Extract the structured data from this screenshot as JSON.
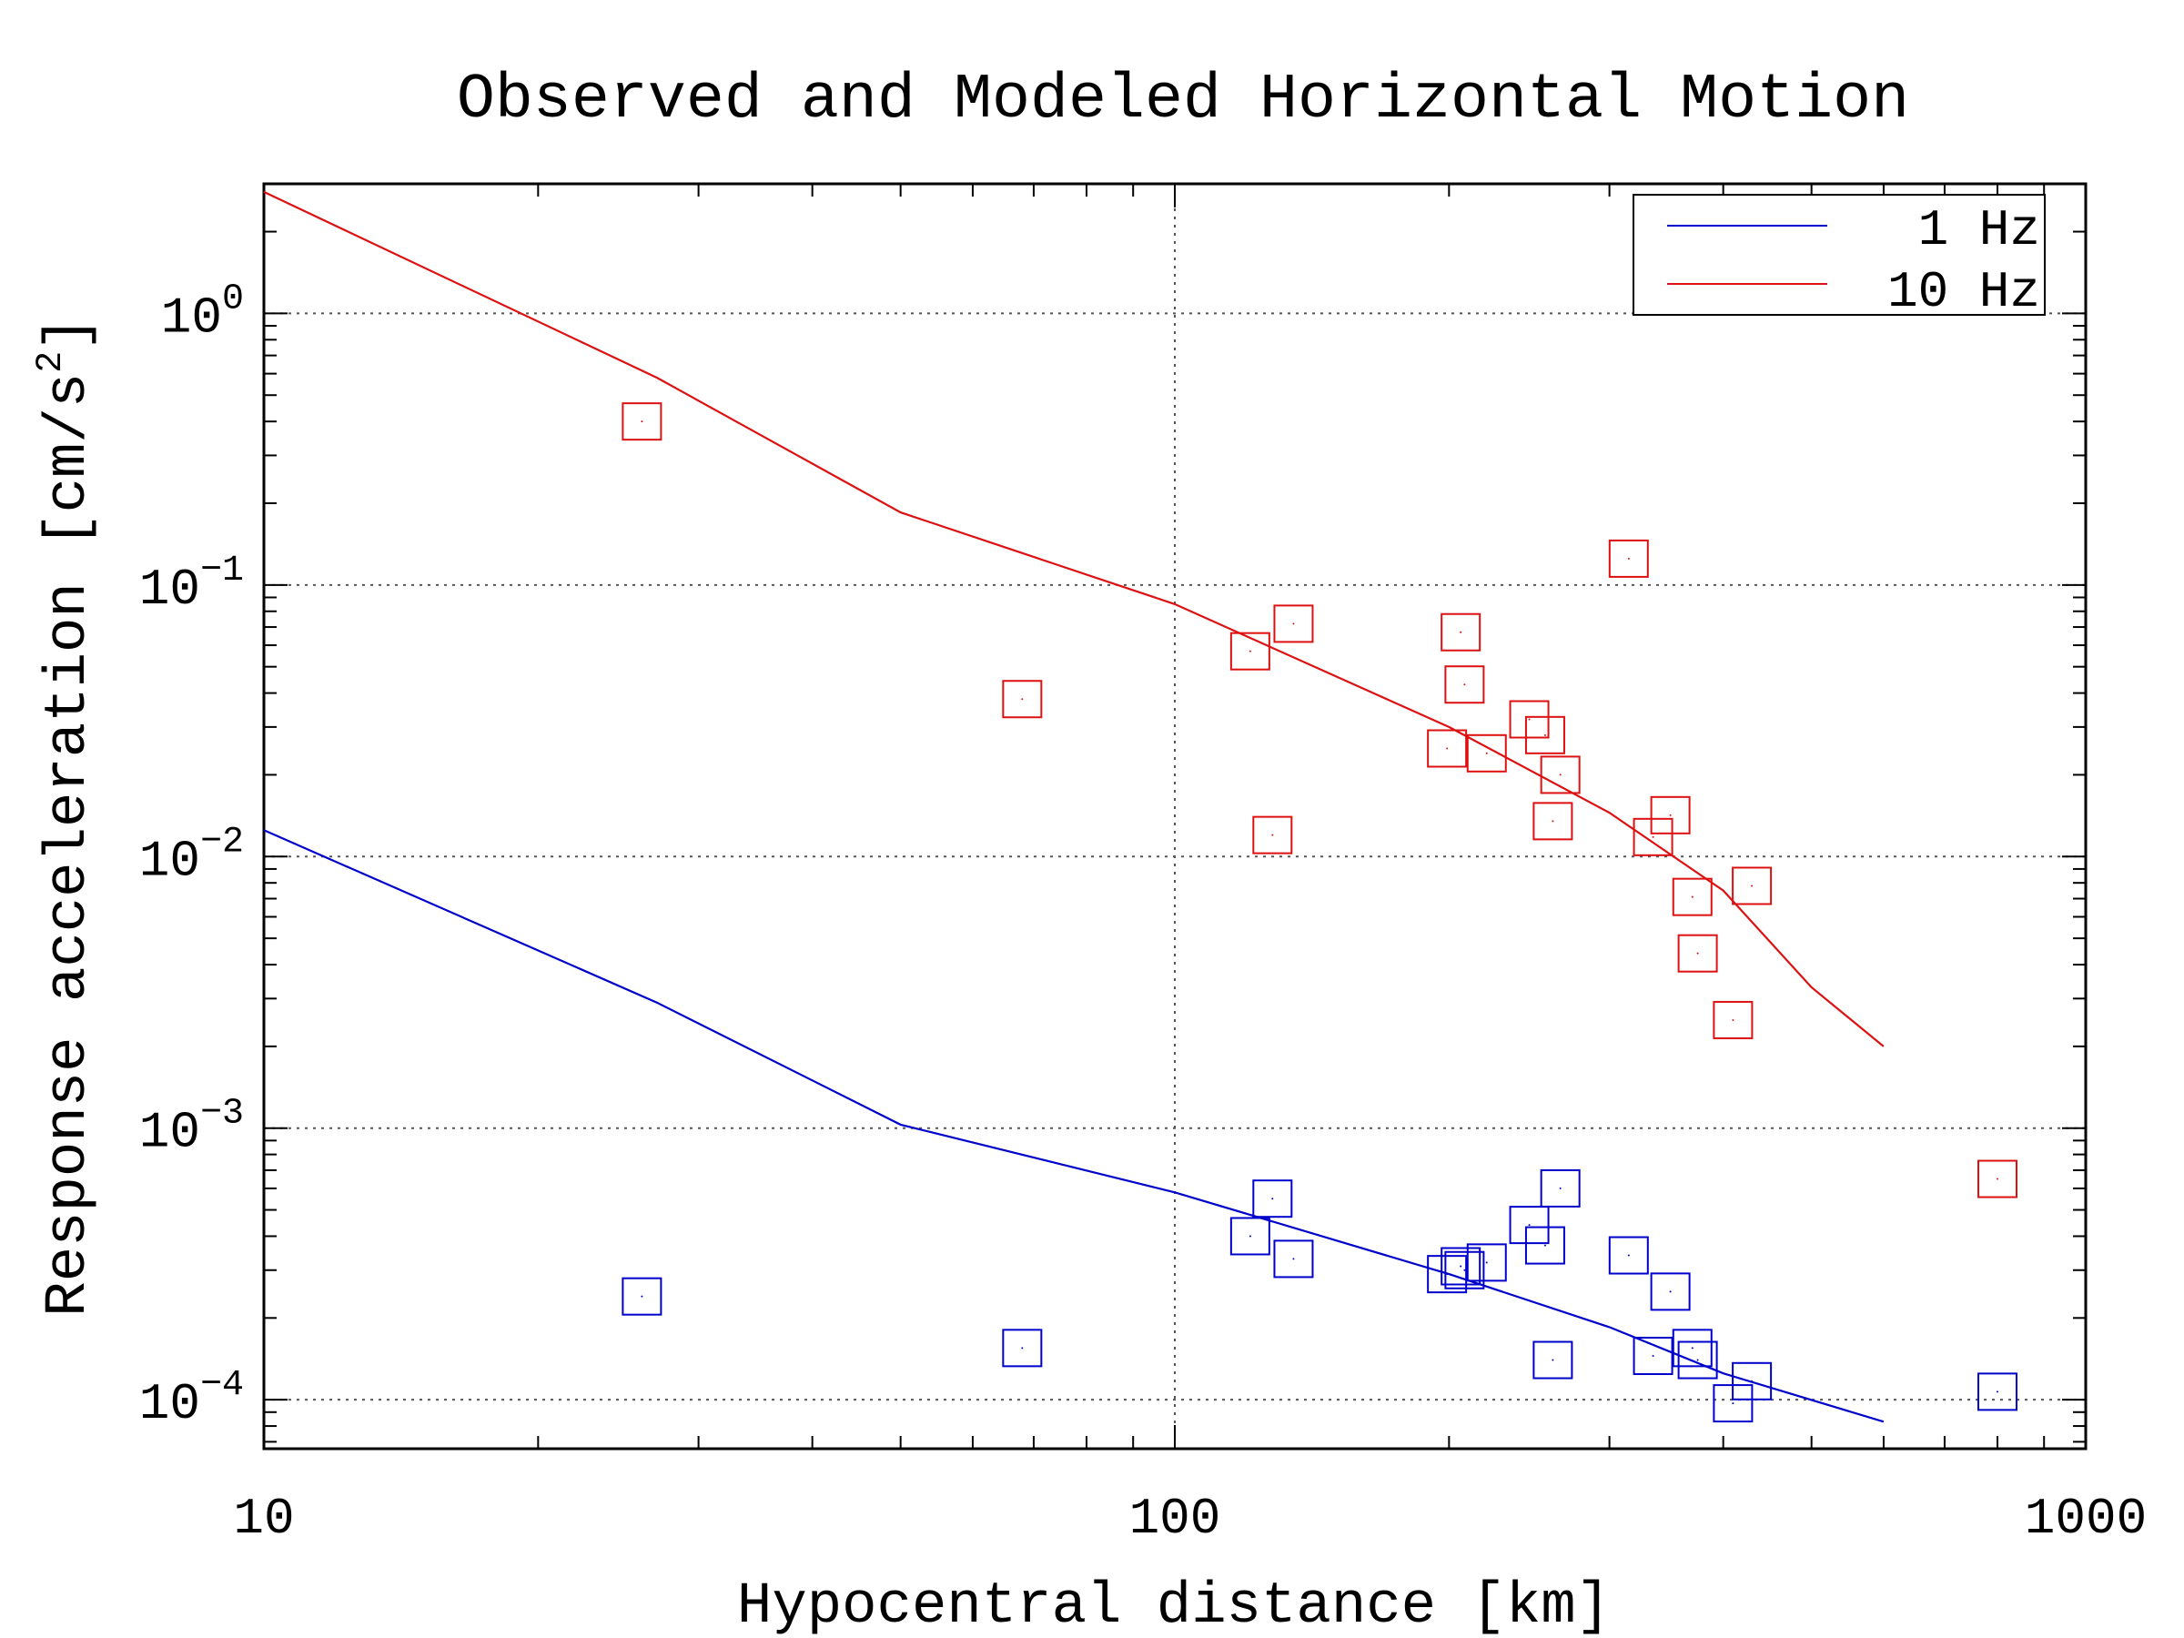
{
  "chart_data": {
    "type": "scatter",
    "title": "Observed and Modeled Horizontal Motion",
    "xlabel": "Hypocentral distance [km]",
    "ylabel_base": "Response acceleration [cm/s",
    "ylabel_sup": "2",
    "ylabel_close": "]",
    "x_scale": "log",
    "y_scale": "log",
    "xlim": [
      10,
      1000
    ],
    "ylim": [
      6.6e-05,
      3.0
    ],
    "grid": true,
    "legend_position": "top-right",
    "x_ticks": [
      {
        "value": 10,
        "label": "10"
      },
      {
        "value": 100,
        "label": "100"
      },
      {
        "value": 1000,
        "label": "1000"
      }
    ],
    "y_ticks": [
      {
        "value": 0.0001,
        "base": "10",
        "exp": "−4"
      },
      {
        "value": 0.001,
        "base": "10",
        "exp": "−3"
      },
      {
        "value": 0.01,
        "base": "10",
        "exp": "−2"
      },
      {
        "value": 0.1,
        "base": "10",
        "exp": "−1"
      },
      {
        "value": 1,
        "base": "10",
        "exp": "0"
      }
    ],
    "series": [
      {
        "name": "1 Hz",
        "color": "#0000cc",
        "model_line": [
          [
            10,
            0.0125
          ],
          [
            27,
            0.0029
          ],
          [
            50,
            0.00103
          ],
          [
            100,
            0.00058
          ],
          [
            200,
            0.00029
          ],
          [
            300,
            0.000185
          ],
          [
            400,
            0.000125
          ],
          [
            600,
            8.3e-05
          ]
        ],
        "observations": [
          [
            26,
            0.00024
          ],
          [
            68,
            0.000155
          ],
          [
            121,
            0.0004
          ],
          [
            128,
            0.00055
          ],
          [
            135,
            0.00033
          ],
          [
            199,
            0.00029
          ],
          [
            206,
            0.00031
          ],
          [
            208,
            0.0003
          ],
          [
            220,
            0.00032
          ],
          [
            245,
            0.00044
          ],
          [
            255,
            0.00037
          ],
          [
            260,
            0.00014
          ],
          [
            265,
            0.0006
          ],
          [
            315,
            0.00034
          ],
          [
            335,
            0.000145
          ],
          [
            350,
            0.00025
          ],
          [
            370,
            0.000155
          ],
          [
            375,
            0.00014
          ],
          [
            410,
            9.7e-05
          ],
          [
            430,
            0.000117
          ],
          [
            800,
            0.000107
          ]
        ]
      },
      {
        "name": "10 Hz",
        "color": "#dd1111",
        "model_line": [
          [
            10,
            2.8
          ],
          [
            27,
            0.58
          ],
          [
            50,
            0.185
          ],
          [
            100,
            0.085
          ],
          [
            200,
            0.03
          ],
          [
            300,
            0.0145
          ],
          [
            400,
            0.0075
          ],
          [
            500,
            0.0033
          ],
          [
            600,
            0.002
          ]
        ],
        "observations": [
          [
            26,
            0.4
          ],
          [
            68,
            0.038
          ],
          [
            121,
            0.057
          ],
          [
            128,
            0.012
          ],
          [
            135,
            0.072
          ],
          [
            199,
            0.025
          ],
          [
            206,
            0.067
          ],
          [
            208,
            0.043
          ],
          [
            220,
            0.024
          ],
          [
            245,
            0.032
          ],
          [
            255,
            0.028
          ],
          [
            260,
            0.0135
          ],
          [
            265,
            0.02
          ],
          [
            315,
            0.125
          ],
          [
            335,
            0.0118
          ],
          [
            350,
            0.0142
          ],
          [
            370,
            0.0071
          ],
          [
            375,
            0.0044
          ],
          [
            410,
            0.0025
          ],
          [
            430,
            0.0078
          ],
          [
            800,
            0.00065
          ]
        ]
      }
    ]
  }
}
